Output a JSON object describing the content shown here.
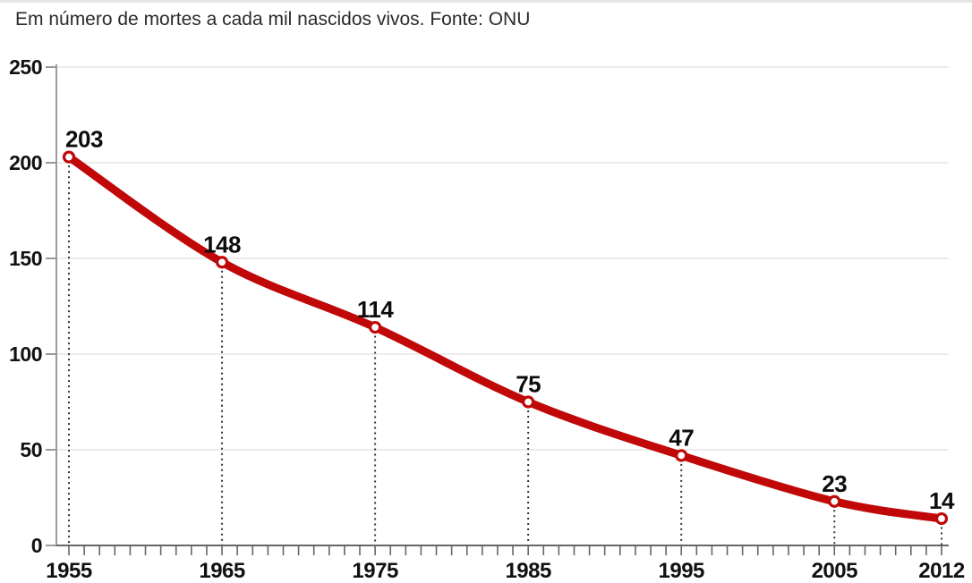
{
  "header": {
    "title": "Em número de mortes a cada mil nascidos vivos. Fonte: ONU"
  },
  "chart_data": {
    "type": "line",
    "title": "Em número de mortes a cada mil nascidos vivos. Fonte: ONU",
    "source": "Fonte: ONU",
    "x": [
      1955,
      1965,
      1975,
      1985,
      1995,
      2005,
      2012
    ],
    "x_tick_labels": [
      "1955",
      "1965",
      "1975",
      "1985",
      "1995",
      "2005",
      "2012"
    ],
    "values": [
      203,
      148,
      114,
      75,
      47,
      23,
      14
    ],
    "point_labels": [
      "203",
      "148",
      "114",
      "75",
      "47",
      "23",
      "14"
    ],
    "xlabel": "",
    "ylabel": "",
    "ylim": [
      0,
      250
    ],
    "xlim": [
      1955,
      2012
    ],
    "y_ticks": [
      0,
      50,
      100,
      150,
      200,
      250
    ],
    "y_tick_labels": [
      "0",
      "50",
      "100",
      "150",
      "200",
      "250"
    ],
    "minor_x_tick_step_years": 1,
    "grid": "horizontal",
    "legend": "none",
    "guide_lines": "dotted-vertical-at-each-point",
    "colors": {
      "line": "#c00808",
      "marker_fill": "#ffffff",
      "marker_ring": "#c00808",
      "grid": "#ececec",
      "y_axis": "#999999",
      "x_axis": "#666666",
      "dotted_guide": "#333333",
      "labels": "#0d0d0d",
      "title": "#2b2b2b"
    }
  }
}
